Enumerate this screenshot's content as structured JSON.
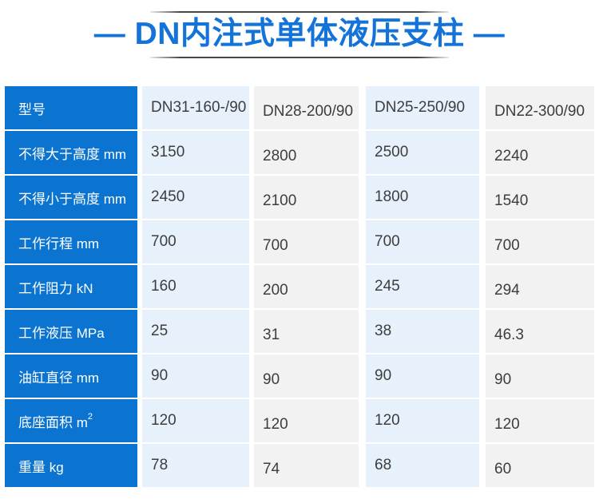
{
  "title": {
    "text": "— DN内注式单体液压支柱 —"
  },
  "colors": {
    "title_blue": "#1373d8",
    "header_cell_blue": "#0b74d1",
    "light_blue_cell": "#e7f1fb",
    "gray_cell": "#f2f2f2",
    "data_text": "#3d3d3d",
    "rule_gray": "#474747"
  },
  "table": {
    "rows": [
      {
        "label": "型号",
        "sup": "",
        "values": [
          "DN31-160-/90",
          "DN28-200/90",
          "DN25-250/90",
          "DN22-300/90"
        ]
      },
      {
        "label": "不得大于高度 mm",
        "sup": "",
        "values": [
          "3150",
          "2800",
          "2500",
          "2240"
        ]
      },
      {
        "label": "不得小于高度 mm",
        "sup": "",
        "values": [
          "2450",
          "2100",
          "1800",
          "1540"
        ]
      },
      {
        "label": "工作行程 mm",
        "sup": "",
        "values": [
          "700",
          "700",
          "700",
          "700"
        ]
      },
      {
        "label": "工作阻力 kN",
        "sup": "",
        "values": [
          "160",
          "200",
          "245",
          "294"
        ]
      },
      {
        "label": "工作液压 MPa",
        "sup": "",
        "values": [
          "25",
          "31",
          "38",
          "46.3"
        ]
      },
      {
        "label": "油缸直径 mm",
        "sup": "",
        "values": [
          "90",
          "90",
          "90",
          "90"
        ]
      },
      {
        "label": "底座面积 m",
        "sup": "2",
        "values": [
          "120",
          "120",
          "120",
          "120"
        ]
      },
      {
        "label": "重量 kg",
        "sup": "",
        "values": [
          "78",
          "74",
          "68",
          "60"
        ]
      }
    ]
  }
}
